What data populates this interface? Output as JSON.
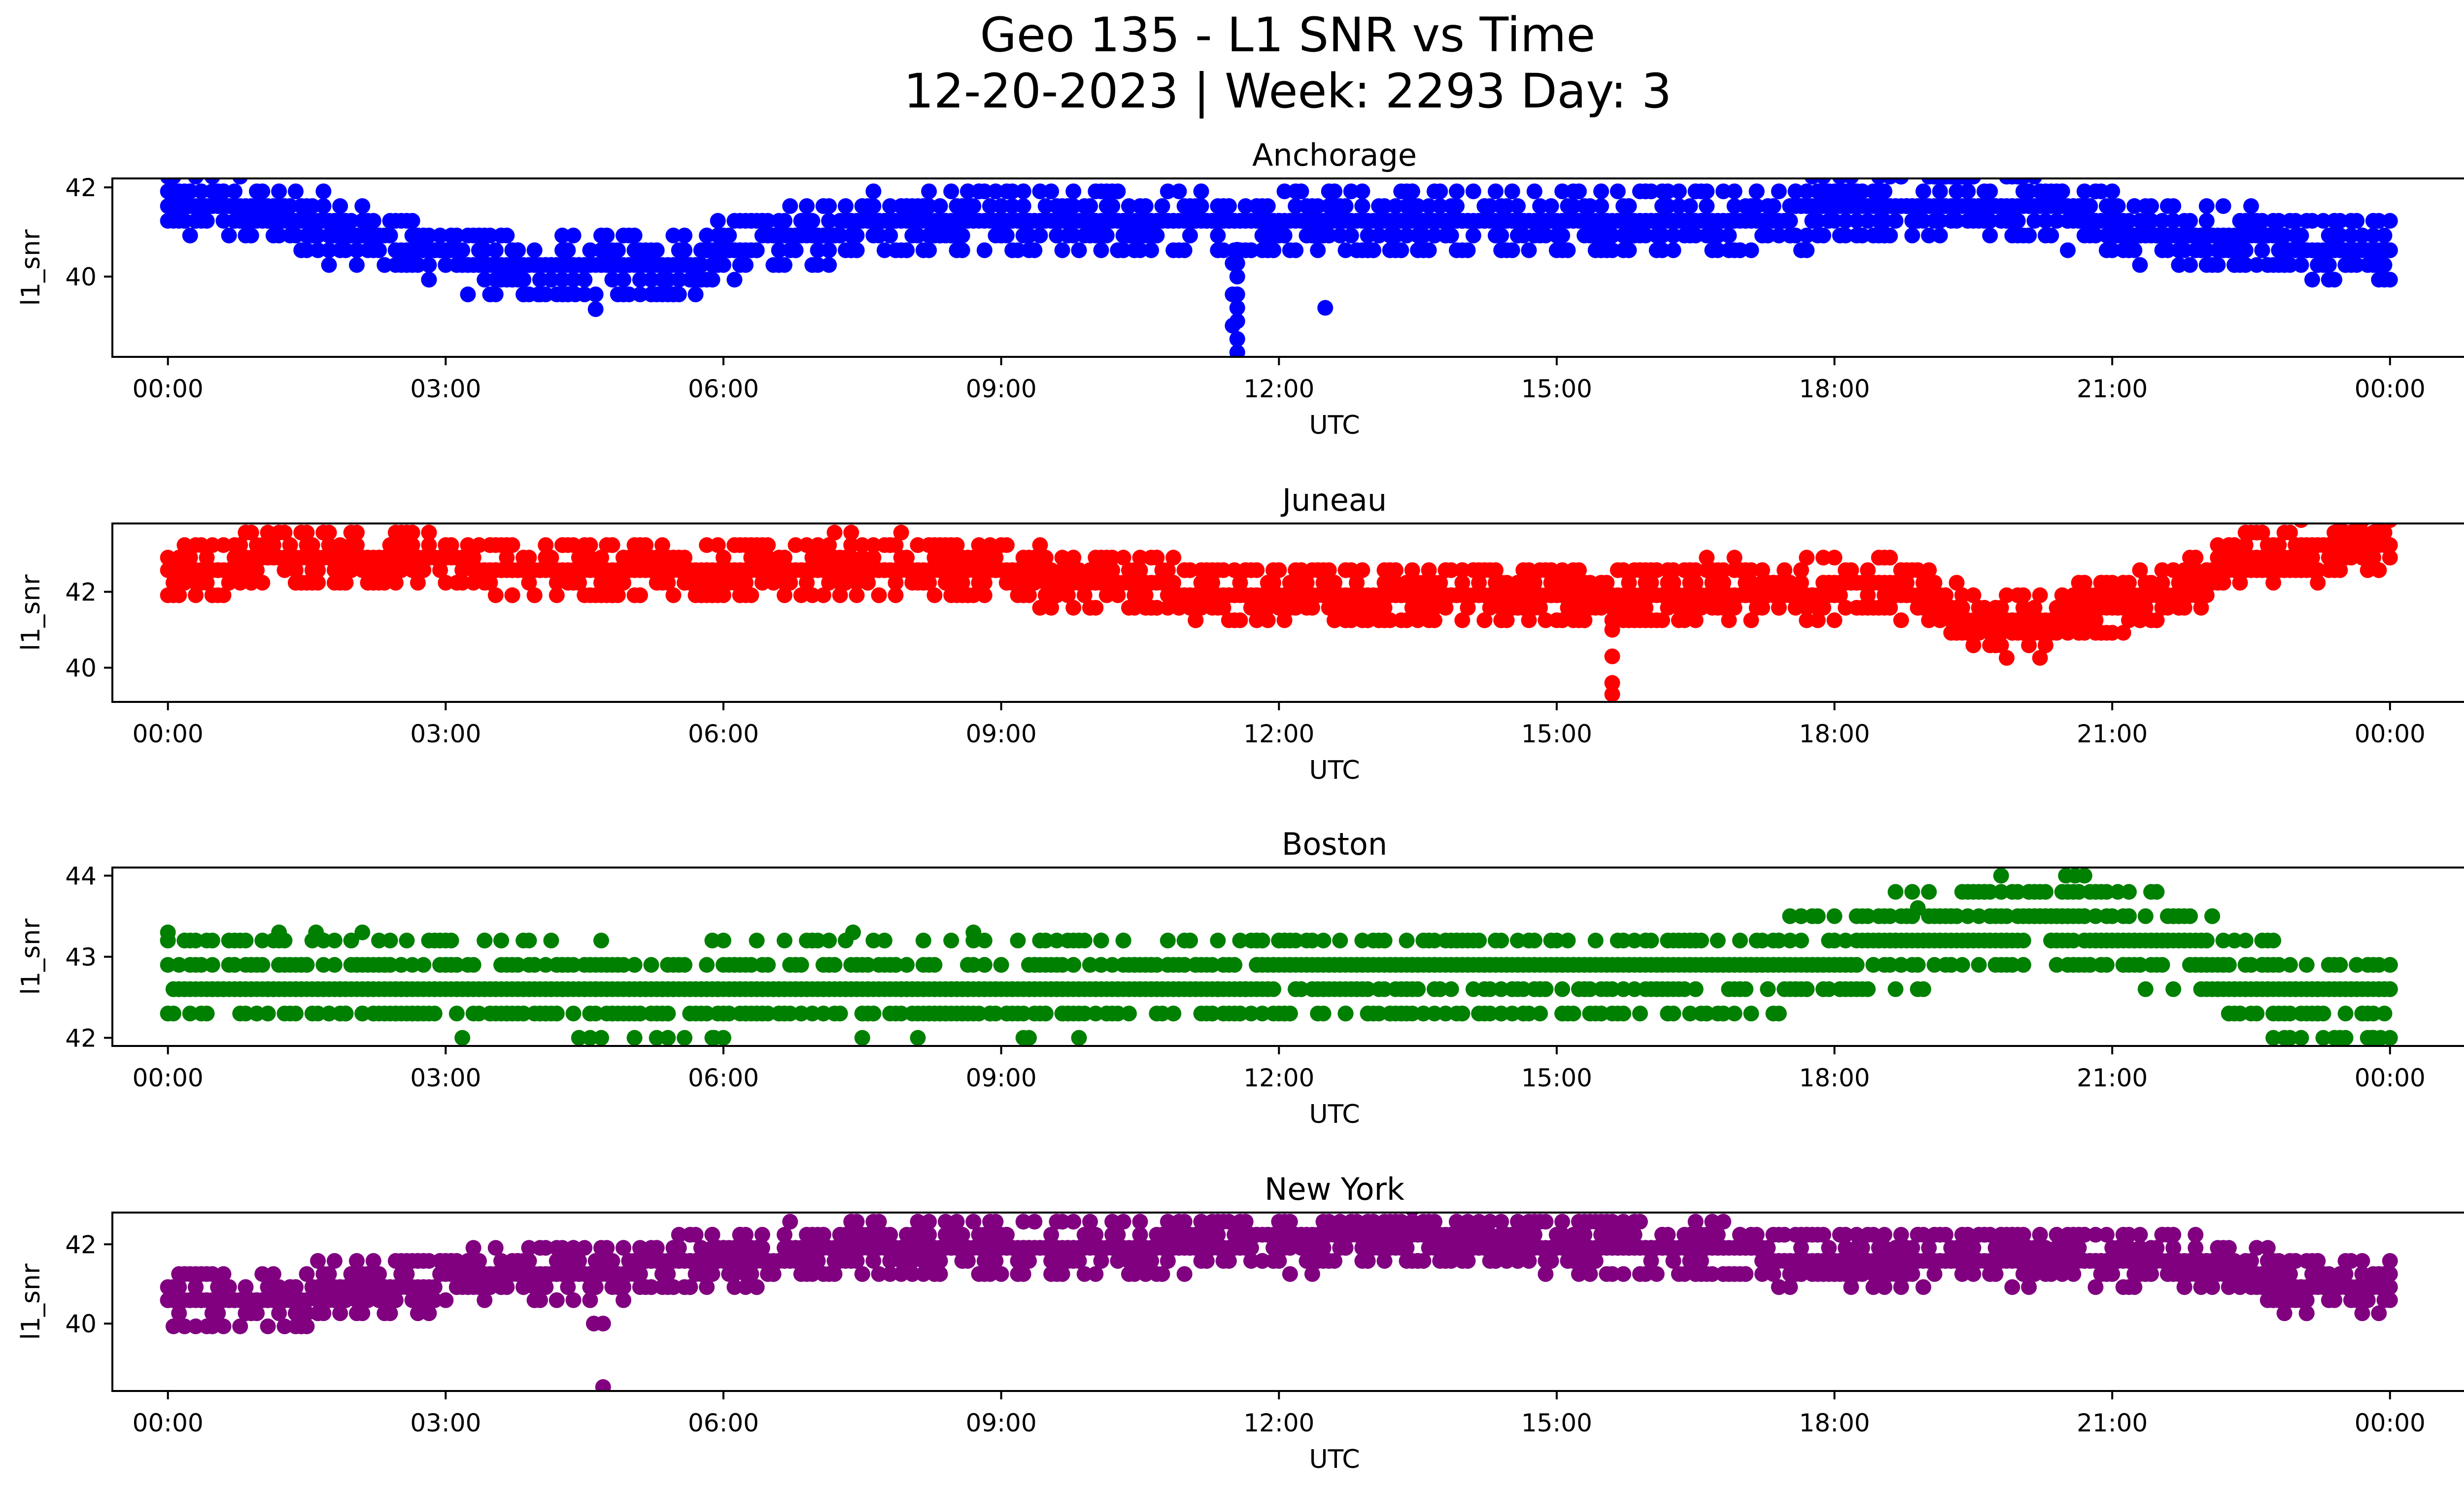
{
  "figure": {
    "title_line1": "Geo 135 - L1 SNR vs Time",
    "title_line2": "12-20-2023 | Week: 2293 Day: 3"
  },
  "chart_data": [
    {
      "type": "scatter",
      "title": "Anchorage",
      "xlabel": "UTC",
      "ylabel": "l1_snr",
      "color": "#0000ff",
      "ylim": [
        38.2,
        42.2
      ],
      "yticks": [
        40,
        42
      ],
      "xticks": [
        "00:00",
        "03:00",
        "06:00",
        "09:00",
        "12:00",
        "15:00",
        "18:00",
        "21:00",
        "00:00"
      ],
      "xlim_hours": [
        -0.6,
        25.8
      ],
      "trend": [
        [
          0,
          41.6
        ],
        [
          0.8,
          41.5
        ],
        [
          1.5,
          41.2
        ],
        [
          2.3,
          40.8
        ],
        [
          3.0,
          40.5
        ],
        [
          3.8,
          40.2
        ],
        [
          4.5,
          40.1
        ],
        [
          5.5,
          40.3
        ],
        [
          6.5,
          40.8
        ],
        [
          7.5,
          41.2
        ],
        [
          9.0,
          41.2
        ],
        [
          12.0,
          41.2
        ],
        [
          15.0,
          41.2
        ],
        [
          17.0,
          41.3
        ],
        [
          18.0,
          41.5
        ],
        [
          19.0,
          41.7
        ],
        [
          20.0,
          41.6
        ],
        [
          20.5,
          41.4
        ],
        [
          21.3,
          41.0
        ],
        [
          22.5,
          40.8
        ],
        [
          24.0,
          40.6
        ]
      ],
      "quantum": 0.33,
      "spread": 0.7,
      "outliers": [
        [
          11.55,
          40.6
        ],
        [
          11.55,
          40.3
        ],
        [
          11.55,
          40.0
        ],
        [
          11.55,
          39.6
        ],
        [
          11.55,
          39.3
        ],
        [
          11.55,
          39.0
        ],
        [
          11.55,
          38.6
        ],
        [
          11.55,
          38.3
        ],
        [
          11.5,
          40.3
        ],
        [
          11.5,
          39.6
        ],
        [
          11.5,
          38.9
        ],
        [
          12.5,
          39.3
        ],
        [
          4.0,
          39.6
        ],
        [
          4.2,
          39.6
        ],
        [
          4.4,
          39.6
        ]
      ]
    },
    {
      "type": "scatter",
      "title": "Juneau",
      "xlabel": "UTC",
      "ylabel": "l1_snr",
      "color": "#ff0000",
      "ylim": [
        39.1,
        43.8
      ],
      "yticks": [
        40,
        42
      ],
      "xticks": [
        "00:00",
        "03:00",
        "06:00",
        "09:00",
        "12:00",
        "15:00",
        "18:00",
        "21:00",
        "00:00"
      ],
      "xlim_hours": [
        -0.6,
        25.8
      ],
      "trend": [
        [
          0,
          42.5
        ],
        [
          1.0,
          42.8
        ],
        [
          2.0,
          42.9
        ],
        [
          3.0,
          42.8
        ],
        [
          4.0,
          42.6
        ],
        [
          6.0,
          42.6
        ],
        [
          8.0,
          42.7
        ],
        [
          9.0,
          42.5
        ],
        [
          10.0,
          42.3
        ],
        [
          11.0,
          42.0
        ],
        [
          12.0,
          41.9
        ],
        [
          14.0,
          41.9
        ],
        [
          15.5,
          41.9
        ],
        [
          16.5,
          42.0
        ],
        [
          17.5,
          42.0
        ],
        [
          18.5,
          42.2
        ],
        [
          19.2,
          41.6
        ],
        [
          19.7,
          41.2
        ],
        [
          20.1,
          41.0
        ],
        [
          20.7,
          41.6
        ],
        [
          21.5,
          41.9
        ],
        [
          22.0,
          42.4
        ],
        [
          22.5,
          42.9
        ],
        [
          23.5,
          43.2
        ],
        [
          24.0,
          43.3
        ]
      ],
      "quantum": 0.33,
      "spread": 0.75,
      "outliers": [
        [
          15.6,
          41.0
        ],
        [
          15.6,
          40.3
        ],
        [
          15.6,
          39.6
        ],
        [
          15.6,
          39.3
        ]
      ]
    },
    {
      "type": "scatter",
      "title": "Boston",
      "xlabel": "UTC",
      "ylabel": "l1_snr",
      "color": "#008000",
      "ylim": [
        41.9,
        44.1
      ],
      "yticks": [
        42,
        43,
        44
      ],
      "xticks": [
        "00:00",
        "03:00",
        "06:00",
        "09:00",
        "12:00",
        "15:00",
        "18:00",
        "21:00",
        "00:00"
      ],
      "xlim_hours": [
        -0.6,
        25.8
      ],
      "trend": [
        [
          0,
          42.75
        ],
        [
          3.5,
          42.65
        ],
        [
          5.5,
          42.5
        ],
        [
          6.5,
          42.7
        ],
        [
          9.0,
          42.65
        ],
        [
          12.0,
          42.75
        ],
        [
          15.0,
          42.75
        ],
        [
          17.0,
          42.8
        ],
        [
          18.0,
          43.0
        ],
        [
          19.5,
          43.3
        ],
        [
          20.5,
          43.4
        ],
        [
          21.5,
          43.2
        ],
        [
          22.0,
          43.0
        ],
        [
          22.5,
          42.6
        ],
        [
          24.0,
          42.45
        ]
      ],
      "quantum": 0.3,
      "spread": 0.55,
      "outliers": [
        [
          5.4,
          42.0
        ],
        [
          5.9,
          42.0
        ],
        [
          6.0,
          42.0
        ],
        [
          19.8,
          44.0
        ],
        [
          20.5,
          44.0
        ],
        [
          20.6,
          44.0
        ],
        [
          20.7,
          44.0
        ],
        [
          23.8,
          42.0
        ],
        [
          23.9,
          42.0
        ],
        [
          24.0,
          42.0
        ],
        [
          0.0,
          43.3
        ],
        [
          1.2,
          43.3
        ],
        [
          1.6,
          43.3
        ],
        [
          2.1,
          43.3
        ],
        [
          7.4,
          43.3
        ],
        [
          8.7,
          43.3
        ],
        [
          18.9,
          43.6
        ]
      ]
    },
    {
      "type": "scatter",
      "title": "New York",
      "xlabel": "UTC",
      "ylabel": "l1_snr",
      "color": "#800080",
      "ylim": [
        38.3,
        42.8
      ],
      "yticks": [
        40,
        42
      ],
      "xticks": [
        "00:00",
        "03:00",
        "06:00",
        "09:00",
        "12:00",
        "15:00",
        "18:00",
        "21:00",
        "00:00"
      ],
      "xlim_hours": [
        -0.6,
        25.8
      ],
      "trend": [
        [
          0,
          40.6
        ],
        [
          1.0,
          40.6
        ],
        [
          2.0,
          40.9
        ],
        [
          3.0,
          41.1
        ],
        [
          4.0,
          41.3
        ],
        [
          5.0,
          41.4
        ],
        [
          6.0,
          41.6
        ],
        [
          7.0,
          41.8
        ],
        [
          9.0,
          41.9
        ],
        [
          11.0,
          42.0
        ],
        [
          12.0,
          42.1
        ],
        [
          13.5,
          42.1
        ],
        [
          14.0,
          42.0
        ],
        [
          15.0,
          41.9
        ],
        [
          16.5,
          41.8
        ],
        [
          18.0,
          41.7
        ],
        [
          20.0,
          41.7
        ],
        [
          22.0,
          41.6
        ],
        [
          22.5,
          41.2
        ],
        [
          23.0,
          41.0
        ],
        [
          24.0,
          40.9
        ]
      ],
      "quantum": 0.33,
      "spread": 0.7,
      "outliers": [
        [
          4.7,
          40.0
        ],
        [
          4.7,
          38.4
        ],
        [
          4.6,
          40.0
        ]
      ]
    }
  ]
}
